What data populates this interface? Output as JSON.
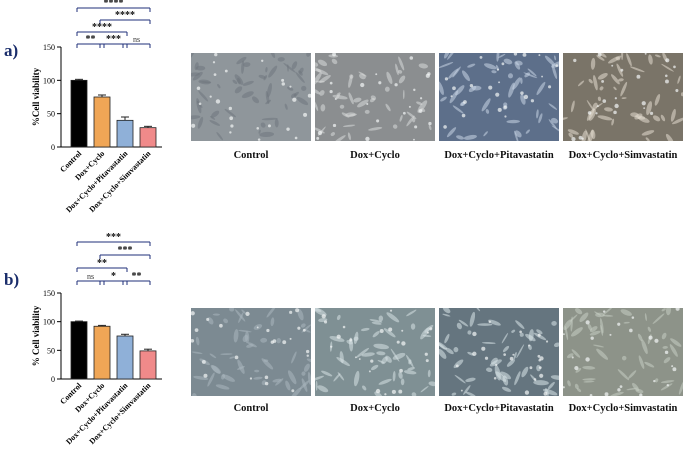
{
  "panels": [
    {
      "letter": "a)",
      "chart_data": {
        "type": "bar",
        "ylabel": "%Cell viability",
        "categories": [
          "Control",
          "Dox+Cyclo",
          "Dox+Cyclo+Pitavastatin",
          "Dox+Cyclo+Simvastatin"
        ],
        "values": [
          100,
          75,
          40,
          29
        ],
        "errors": [
          1.5,
          3,
          5,
          2
        ],
        "colors": [
          "#000000",
          "#f0a656",
          "#8fb0d8",
          "#f08a8a"
        ],
        "ylim": [
          0,
          150
        ],
        "yticks": [
          0,
          50,
          100,
          150
        ],
        "brackets": [
          {
            "from": 0,
            "to": 3,
            "label": "****"
          },
          {
            "from": 1,
            "to": 3,
            "label": "****"
          },
          {
            "from": 0,
            "to": 2,
            "label": "****"
          },
          {
            "from": 0,
            "to": 1,
            "label": "**"
          },
          {
            "from": 1,
            "to": 2,
            "label": "***"
          },
          {
            "from": 2,
            "to": 3,
            "label": "ns"
          }
        ]
      },
      "images": [
        {
          "caption": "Control",
          "tone": "#8f969b",
          "cells": "#6f777d"
        },
        {
          "caption": "Dox+Cyclo",
          "tone": "#8b8e90",
          "cells": "#d8dadb"
        },
        {
          "caption": "Dox+Cyclo+Pitavastatin",
          "tone": "#5d6f8a",
          "cells": "#c9d5e6"
        },
        {
          "caption": "Dox+Cyclo+Simvastatin",
          "tone": "#7a7468",
          "cells": "#e3ddd0"
        }
      ]
    },
    {
      "letter": "b)",
      "chart_data": {
        "type": "bar",
        "ylabel": "% Cell viability",
        "categories": [
          "Control",
          "Dox+Cyclo",
          "Dox+Cyclo+Pitavastatin",
          "Dox+Cyclo+Simvastatin"
        ],
        "values": [
          100,
          92,
          75,
          49
        ],
        "errors": [
          1,
          1.5,
          3,
          3
        ],
        "colors": [
          "#000000",
          "#f0a656",
          "#8fb0d8",
          "#f08a8a"
        ],
        "ylim": [
          0,
          150
        ],
        "yticks": [
          0,
          50,
          100,
          150
        ],
        "brackets": [
          {
            "from": 0,
            "to": 3,
            "label": "***"
          },
          {
            "from": 1,
            "to": 3,
            "label": "***"
          },
          {
            "from": 0,
            "to": 2,
            "label": "**"
          },
          {
            "from": 0,
            "to": 1,
            "label": "ns"
          },
          {
            "from": 1,
            "to": 2,
            "label": "*"
          },
          {
            "from": 2,
            "to": 3,
            "label": "**"
          }
        ]
      },
      "images": [
        {
          "caption": "Control",
          "tone": "#7c8a92",
          "cells": "#a9b6bd"
        },
        {
          "caption": "Dox+Cyclo",
          "tone": "#7f9094",
          "cells": "#d7e2e3"
        },
        {
          "caption": "Dox+Cyclo+Pitavastatin",
          "tone": "#65757f",
          "cells": "#dbe6ea"
        },
        {
          "caption": "Dox+Cyclo+Simvastatin",
          "tone": "#8d9389",
          "cells": "#c7cdc2"
        }
      ]
    }
  ]
}
